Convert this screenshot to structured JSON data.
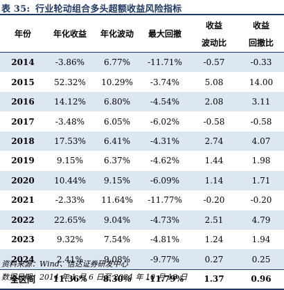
{
  "title_number": "表 35:",
  "title_text": "行业轮动组合多头超额收益风险指标",
  "chart_data": {
    "type": "table",
    "columns": [
      {
        "line1": "年份",
        "line2": ""
      },
      {
        "line1": "年化收益",
        "line2": ""
      },
      {
        "line1": "年化波动",
        "line2": ""
      },
      {
        "line1": "最大回撤",
        "line2": ""
      },
      {
        "line1": "收益",
        "line2": "波动比"
      },
      {
        "line1": "收益",
        "line2": "回撤比"
      }
    ],
    "rows": [
      [
        "2014",
        "-3.86%",
        "6.77%",
        "-11.71%",
        "-0.57",
        "-0.33"
      ],
      [
        "2015",
        "52.32%",
        "10.29%",
        "-3.74%",
        "5.08",
        "14.00"
      ],
      [
        "2016",
        "14.12%",
        "6.80%",
        "-4.54%",
        "2.08",
        "3.11"
      ],
      [
        "2017",
        "-3.48%",
        "6.05%",
        "-6.02%",
        "-0.58",
        "-0.58"
      ],
      [
        "2018",
        "17.53%",
        "6.41%",
        "-4.31%",
        "2.74",
        "4.07"
      ],
      [
        "2019",
        "9.15%",
        "6.37%",
        "-4.62%",
        "1.44",
        "1.98"
      ],
      [
        "2020",
        "10.44%",
        "9.15%",
        "-6.09%",
        "1.14",
        "1.71"
      ],
      [
        "2021",
        "-2.33%",
        "11.64%",
        "-11.77%",
        "-0.20",
        "-0.20"
      ],
      [
        "2022",
        "22.65%",
        "9.04%",
        "-4.73%",
        "2.51",
        "4.79"
      ],
      [
        "2023",
        "9.32%",
        "7.54%",
        "-4.81%",
        "1.24",
        "1.94"
      ],
      [
        "2024",
        "2.41%",
        "9.08%",
        "-9.77%",
        "0.27",
        "0.25"
      ]
    ],
    "total": [
      "全区间",
      "11.36%",
      "8.30%",
      "-11.79%",
      "1.37",
      "0.96"
    ]
  },
  "notes": {
    "source": "资料来源：Wind、信达证券研发中心",
    "date": "数据日期：2014 年 1 月 6 日至 2024 年 10 月 18 日"
  },
  "colors": {
    "title": "#1f3864",
    "band": "#dde6f3",
    "rule": "#1f3864"
  }
}
